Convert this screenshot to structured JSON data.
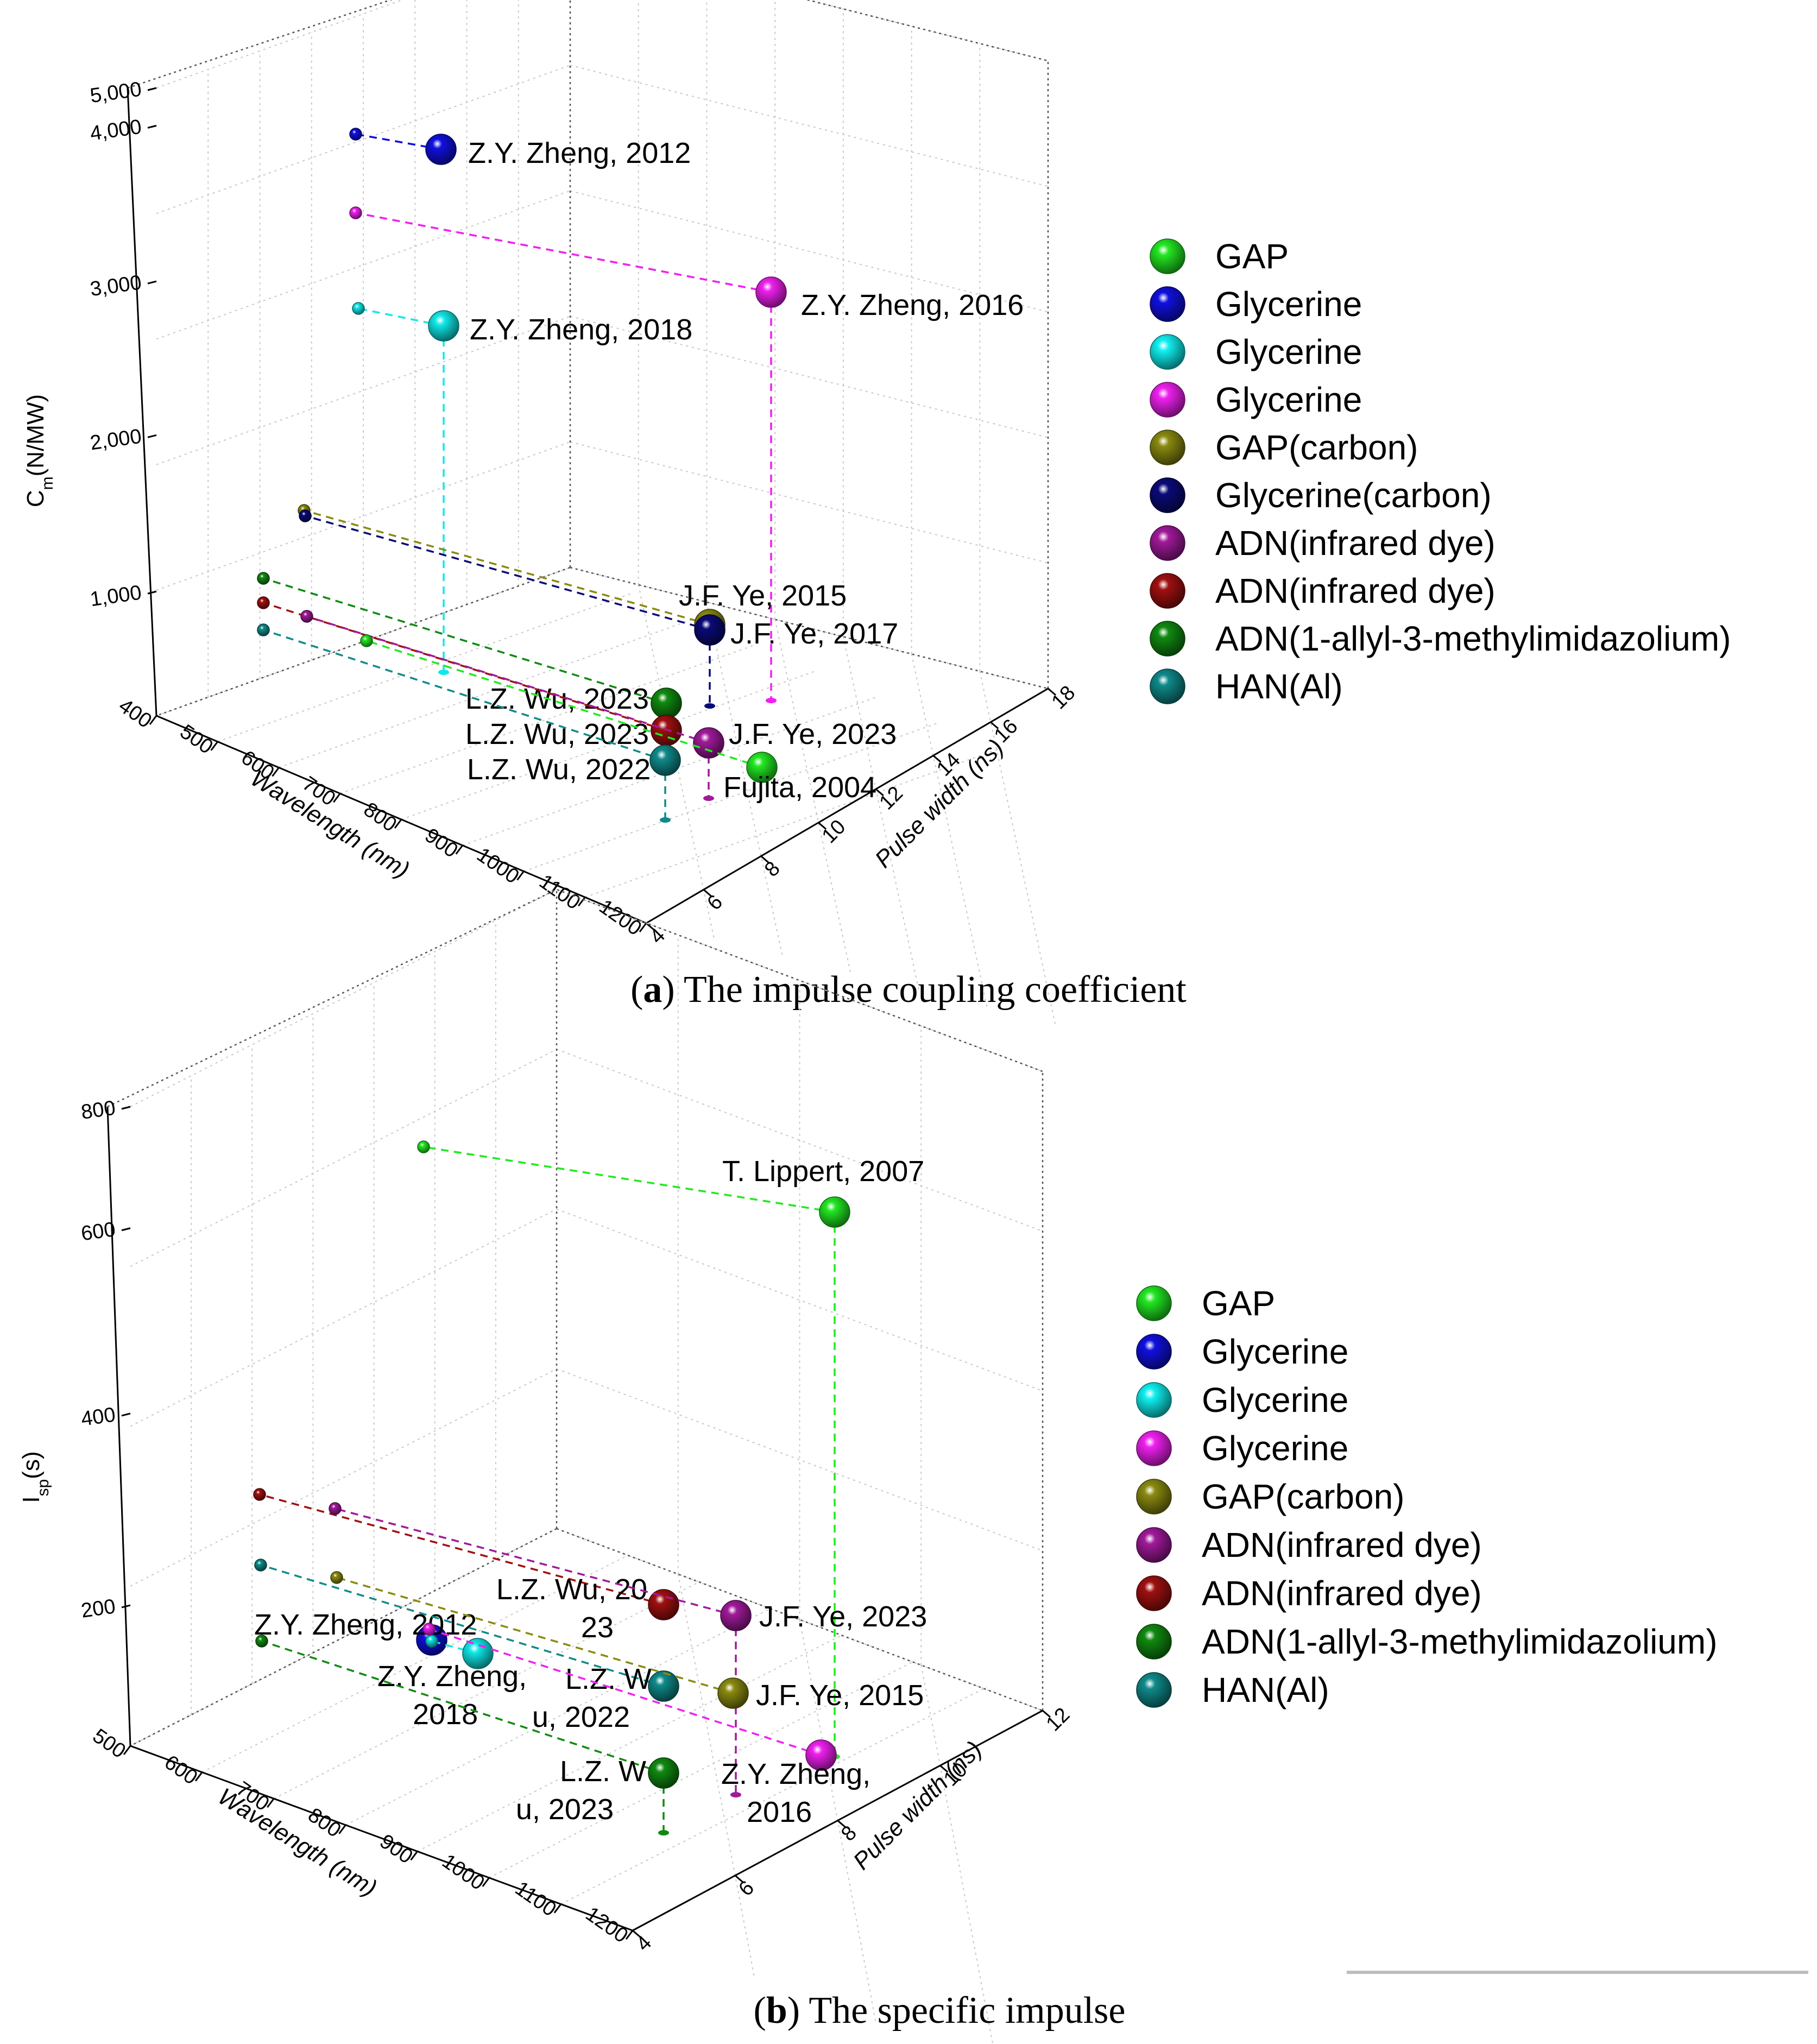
{
  "chart_data": [
    {
      "type": "scatter",
      "panel": "a",
      "caption_bold": "a",
      "caption_text": " The impulse coupling coefficient",
      "ylabel_main": "C",
      "ylabel_sub": "m",
      "ylabel_unit": "(N/MW)",
      "xlabel": "Wavelength (nm)",
      "zlabel": "Pulse width (ns)",
      "y_ticks": [
        "1,000",
        "2,000",
        "3,000",
        "4,000",
        "5,000"
      ],
      "x_ticks": [
        "400",
        "500",
        "600",
        "700",
        "800",
        "900",
        "1000",
        "1100",
        "1200"
      ],
      "z_ticks": [
        "4",
        "6",
        "8",
        "10",
        "12",
        "14",
        "16",
        "18"
      ],
      "legend": [
        {
          "label": "GAP",
          "color": "#22e822"
        },
        {
          "label": "Glycerine",
          "color": "#1010e0"
        },
        {
          "label": "Glycerine",
          "color": "#10f0f0"
        },
        {
          "label": "Glycerine",
          "color": "#f020f0"
        },
        {
          "label": "GAP(carbon)",
          "color": "#8a8a10"
        },
        {
          "label": "Glycerine(carbon)",
          "color": "#0a0a78"
        },
        {
          "label": "ADN(infrared dye)",
          "color": "#a01a9a"
        },
        {
          "label": "ADN(infrared dye)",
          "color": "#a01010"
        },
        {
          "label": "ADN(1-allyl-3-methylimidazolium)",
          "color": "#108a10"
        },
        {
          "label": "HAN(Al)",
          "color": "#108a8a"
        }
      ],
      "points": [
        {
          "label": "Z.Y. Zheng, 2012",
          "color": "#1010e0"
        },
        {
          "label": "Z.Y. Zheng, 2016",
          "color": "#f020f0"
        },
        {
          "label": "Z.Y. Zheng, 2018",
          "color": "#10e8e8"
        },
        {
          "label": "J.F. Ye, 2015",
          "color": "#8a8a10"
        },
        {
          "label": "J.F. Ye, 2017",
          "color": "#0a0a78"
        },
        {
          "label": "L.Z. Wu, 2023",
          "color": "#108a10"
        },
        {
          "label": "L.Z. Wu, 2023",
          "color": "#a01010"
        },
        {
          "label": "J.F. Ye, 2023",
          "color": "#a01a9a"
        },
        {
          "label": "L.Z. Wu, 2022",
          "color": "#108a8a"
        },
        {
          "label": "Fujita, 2004",
          "color": "#22e822"
        }
      ]
    },
    {
      "type": "scatter",
      "panel": "b",
      "caption_bold": "b",
      "caption_text": " The specific impulse",
      "ylabel_main": "I",
      "ylabel_sub": "sp",
      "ylabel_unit": "(s)",
      "xlabel": "Wavelength (nm)",
      "zlabel": "Pulse width (ns)",
      "y_ticks": [
        "200",
        "400",
        "600",
        "800"
      ],
      "x_ticks": [
        "500",
        "600",
        "700",
        "800",
        "900",
        "1000",
        "1100",
        "1200"
      ],
      "z_ticks": [
        "4",
        "6",
        "8",
        "10",
        "12"
      ],
      "legend": [
        {
          "label": "GAP",
          "color": "#22e822"
        },
        {
          "label": "Glycerine",
          "color": "#1010e0"
        },
        {
          "label": "Glycerine",
          "color": "#10f0f0"
        },
        {
          "label": "Glycerine",
          "color": "#f020f0"
        },
        {
          "label": "GAP(carbon)",
          "color": "#8a8a10"
        },
        {
          "label": "ADN(infrared dye)",
          "color": "#a01a9a"
        },
        {
          "label": "ADN(infrared dye)",
          "color": "#a01010"
        },
        {
          "label": "ADN(1-allyl-3-methylimidazolium)",
          "color": "#108a10"
        },
        {
          "label": "HAN(Al)",
          "color": "#108a8a"
        }
      ],
      "points": [
        {
          "label": "T. Lippert, 2007",
          "color": "#22e822"
        },
        {
          "label": "L.Z. Wu, 2023",
          "color": "#a01010"
        },
        {
          "label": "J.F. Ye, 2023",
          "color": "#a01a9a"
        },
        {
          "label": "Z.Y. Zheng, 2012",
          "color": "#1010e0"
        },
        {
          "label": "Z.Y. Zheng, 2018",
          "color": "#10e8e8"
        },
        {
          "label": "L.Z. Wu, 2022",
          "color": "#108a8a"
        },
        {
          "label": "J.F. Ye, 2015",
          "color": "#8a8a10"
        },
        {
          "label": "L.Z. Wu, 2023",
          "color": "#108a10"
        },
        {
          "label": "Z.Y. Zheng, 2016",
          "color": "#f020f0"
        }
      ]
    }
  ]
}
